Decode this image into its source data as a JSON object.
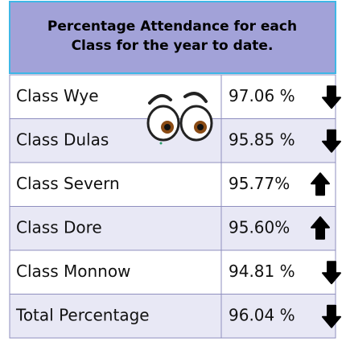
{
  "header": {
    "title_line_1": "Percentage Attendance for each",
    "title_line_2": "Class for the year to date."
  },
  "table": {
    "rows": [
      [
        "Class Wye",
        "97.06 %"
      ],
      [
        "Class Dulas",
        "95.85 %"
      ],
      [
        "Class Severn",
        "95.77%"
      ],
      [
        "Class Dore",
        "95.60%"
      ],
      [
        "Class Monnow",
        "94.81 %"
      ],
      [
        "Total Percentage",
        "96.04 %"
      ]
    ]
  }
}
